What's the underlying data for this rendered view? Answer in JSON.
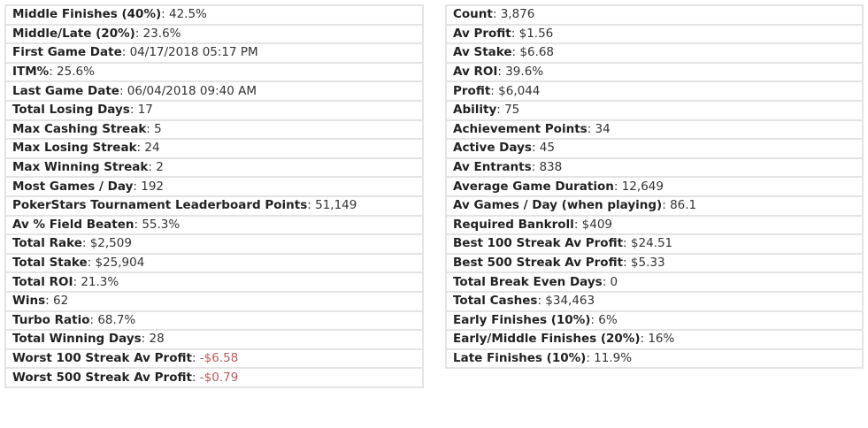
{
  "left_stats": [
    {
      "label": "Middle Finishes (40%)",
      "value": "42.5%"
    },
    {
      "label": "Middle/Late (20%)",
      "value": "23.6%"
    },
    {
      "label": "First Game Date",
      "value": "04/17/2018 05:17 PM"
    },
    {
      "label": "ITM%",
      "value": "25.6%"
    },
    {
      "label": "Last Game Date",
      "value": "06/04/2018 09:40 AM"
    },
    {
      "label": "Total Losing Days",
      "value": "17"
    },
    {
      "label": "Max Cashing Streak",
      "value": "5"
    },
    {
      "label": "Max Losing Streak",
      "value": "24"
    },
    {
      "label": "Max Winning Streak",
      "value": "2"
    },
    {
      "label": "Most Games / Day",
      "value": "192"
    },
    {
      "label": "PokerStars Tournament Leaderboard Points",
      "value": "51,149"
    },
    {
      "label": "Av % Field Beaten",
      "value": "55.3%"
    },
    {
      "label": "Total Rake",
      "value": "$2,509"
    },
    {
      "label": "Total Stake",
      "value": "$25,904"
    },
    {
      "label": "Total ROI",
      "value": "21.3%"
    },
    {
      "label": "Wins",
      "value": "62"
    },
    {
      "label": "Turbo Ratio",
      "value": "68.7%"
    },
    {
      "label": "Total Winning Days",
      "value": "28"
    },
    {
      "label": "Worst 100 Streak Av Profit",
      "value": "-$6.58",
      "negative": true
    },
    {
      "label": "Worst 500 Streak Av Profit",
      "value": "-$0.79",
      "negative": true
    }
  ],
  "right_stats": [
    {
      "label": "Count",
      "value": "3,876"
    },
    {
      "label": "Av Profit",
      "value": "$1.56"
    },
    {
      "label": "Av Stake",
      "value": "$6.68"
    },
    {
      "label": "Av ROI",
      "value": "39.6%"
    },
    {
      "label": "Profit",
      "value": "$6,044"
    },
    {
      "label": "Ability",
      "value": "75"
    },
    {
      "label": "Achievement Points",
      "value": "34"
    },
    {
      "label": "Active Days",
      "value": "45"
    },
    {
      "label": "Av Entrants",
      "value": "838"
    },
    {
      "label": "Average Game Duration",
      "value": "12,649"
    },
    {
      "label": "Av Games / Day (when playing)",
      "value": "86.1"
    },
    {
      "label": "Required Bankroll",
      "value": "$409"
    },
    {
      "label": "Best 100 Streak Av Profit",
      "value": "$24.51"
    },
    {
      "label": "Best 500 Streak Av Profit",
      "value": "$5.33"
    },
    {
      "label": "Total Break Even Days",
      "value": "0"
    },
    {
      "label": "Total Cashes",
      "value": "$34,463"
    },
    {
      "label": "Early Finishes (10%)",
      "value": "6%"
    },
    {
      "label": "Early/Middle Finishes (20%)",
      "value": "16%"
    },
    {
      "label": "Late Finishes (10%)",
      "value": "11.9%"
    }
  ],
  "colors": {
    "negative_value": "#b55b5b",
    "border": "#e4e4e4"
  }
}
